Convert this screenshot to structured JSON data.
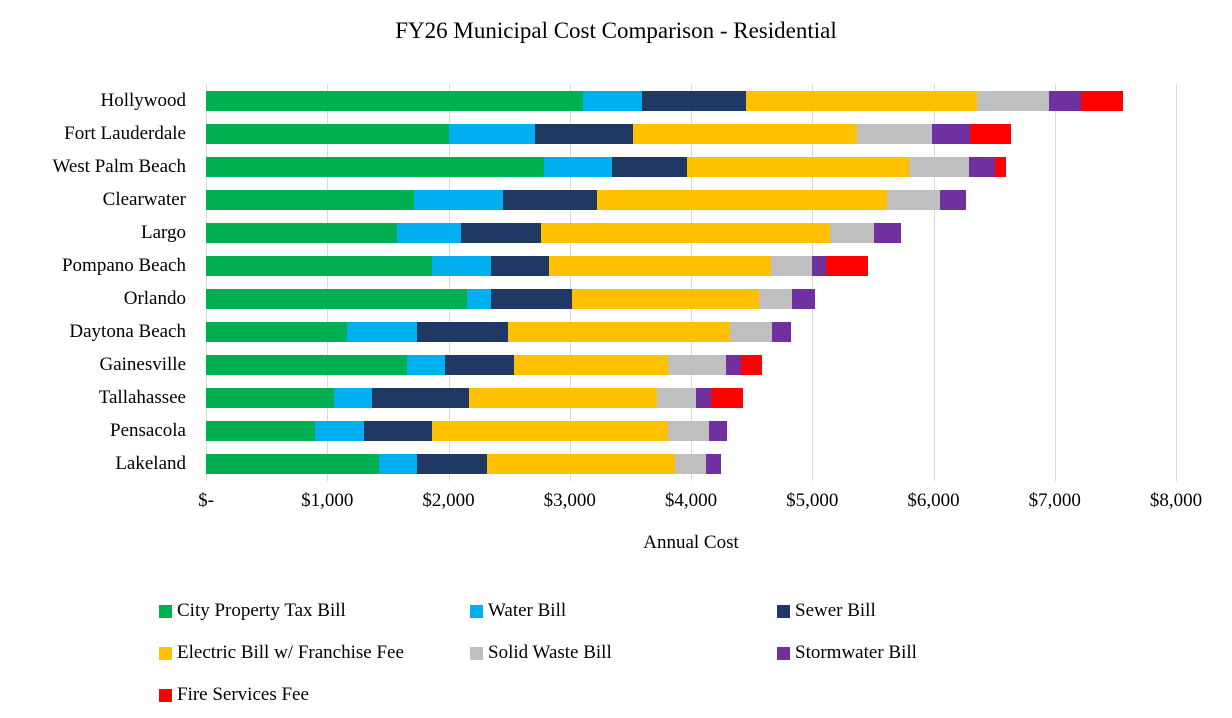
{
  "title": "FY26 Municipal Cost Comparison - Residential",
  "chart_data": {
    "type": "bar",
    "orientation": "horizontal",
    "stacked": true,
    "title": "FY26 Municipal Cost Comparison - Residential",
    "xlabel": "Annual Cost",
    "ylabel": "",
    "xlim": [
      0,
      8000
    ],
    "grid": "vertical-only",
    "gridline_color": "#D9D9D9",
    "legend_position": "bottom-left",
    "x_ticks": [
      "$-",
      "$1,000",
      "$2,000",
      "$3,000",
      "$4,000",
      "$5,000",
      "$6,000",
      "$7,000",
      "$8,000"
    ],
    "x_tick_values": [
      0,
      1000,
      2000,
      3000,
      4000,
      5000,
      6000,
      7000,
      8000
    ],
    "categories": [
      "Hollywood",
      "Fort Lauderdale",
      "West Palm Beach",
      "Clearwater",
      "Largo",
      "Pompano Beach",
      "Orlando",
      "Daytona Beach",
      "Gainesville",
      "Tallahassee",
      "Pensacola",
      "Lakeland"
    ],
    "series": [
      {
        "name": "City Property Tax Bill",
        "color": "#00B050",
        "values": [
          3110,
          2000,
          2790,
          1715,
          1575,
          1865,
          2150,
          1165,
          1660,
          1055,
          900,
          1430
        ]
      },
      {
        "name": "Water Bill",
        "color": "#00B0F0",
        "values": [
          490,
          710,
          560,
          735,
          530,
          485,
          200,
          575,
          310,
          315,
          405,
          310
        ]
      },
      {
        "name": "Sewer Bill",
        "color": "#1F3864",
        "values": [
          855,
          810,
          615,
          775,
          660,
          480,
          670,
          750,
          570,
          800,
          560,
          575
        ]
      },
      {
        "name": "Electric Bill w/ Franchise Fee",
        "color": "#FFC000",
        "values": [
          1905,
          1850,
          1835,
          2395,
          2385,
          1830,
          1540,
          1830,
          1270,
          1550,
          1945,
          1555
        ]
      },
      {
        "name": "Solid Waste Bill",
        "color": "#BFBFBF",
        "values": [
          595,
          615,
          495,
          435,
          360,
          340,
          270,
          350,
          480,
          320,
          340,
          250
        ]
      },
      {
        "name": "Stormwater Bill",
        "color": "#7030A0",
        "values": [
          260,
          315,
          215,
          215,
          225,
          115,
          190,
          155,
          120,
          125,
          150,
          130
        ]
      },
      {
        "name": "Fire Services Fee",
        "color": "#FF0000",
        "values": [
          350,
          340,
          90,
          0,
          0,
          345,
          0,
          0,
          180,
          265,
          0,
          0
        ]
      }
    ],
    "totals": [
      7565,
      6640,
      6600,
      6270,
      5735,
      5460,
      5020,
      4825,
      4590,
      4430,
      4300,
      4250
    ]
  }
}
